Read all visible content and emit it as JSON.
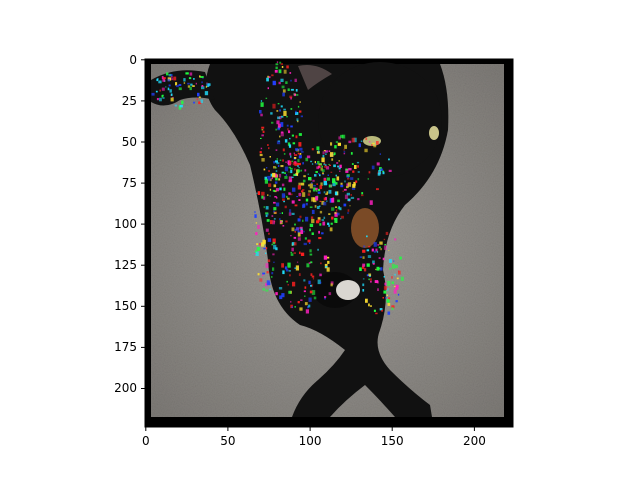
{
  "chart_data": {
    "type": "image",
    "title": "",
    "xlabel": "",
    "ylabel": "",
    "image_width": 224,
    "image_height": 224,
    "xlim": [
      0,
      224
    ],
    "ylim": [
      224,
      0
    ],
    "x_ticks": [
      0,
      50,
      100,
      150,
      200
    ],
    "y_ticks": [
      0,
      25,
      50,
      75,
      100,
      125,
      150,
      175,
      200
    ],
    "grid": false,
    "image_content": "black cat lying on grey carpet, with a colorful speckled saliency overlay over the cat's body and face",
    "colors": {
      "frame_border": "#000000",
      "carpet": "#8f8c88",
      "cat": "#121212",
      "overlay_red": "#ff2020",
      "overlay_green": "#20ff40",
      "overlay_blue": "#2040ff",
      "overlay_magenta": "#ff20c0",
      "overlay_yellow": "#ffe030",
      "overlay_cyan": "#20e0ff"
    }
  }
}
